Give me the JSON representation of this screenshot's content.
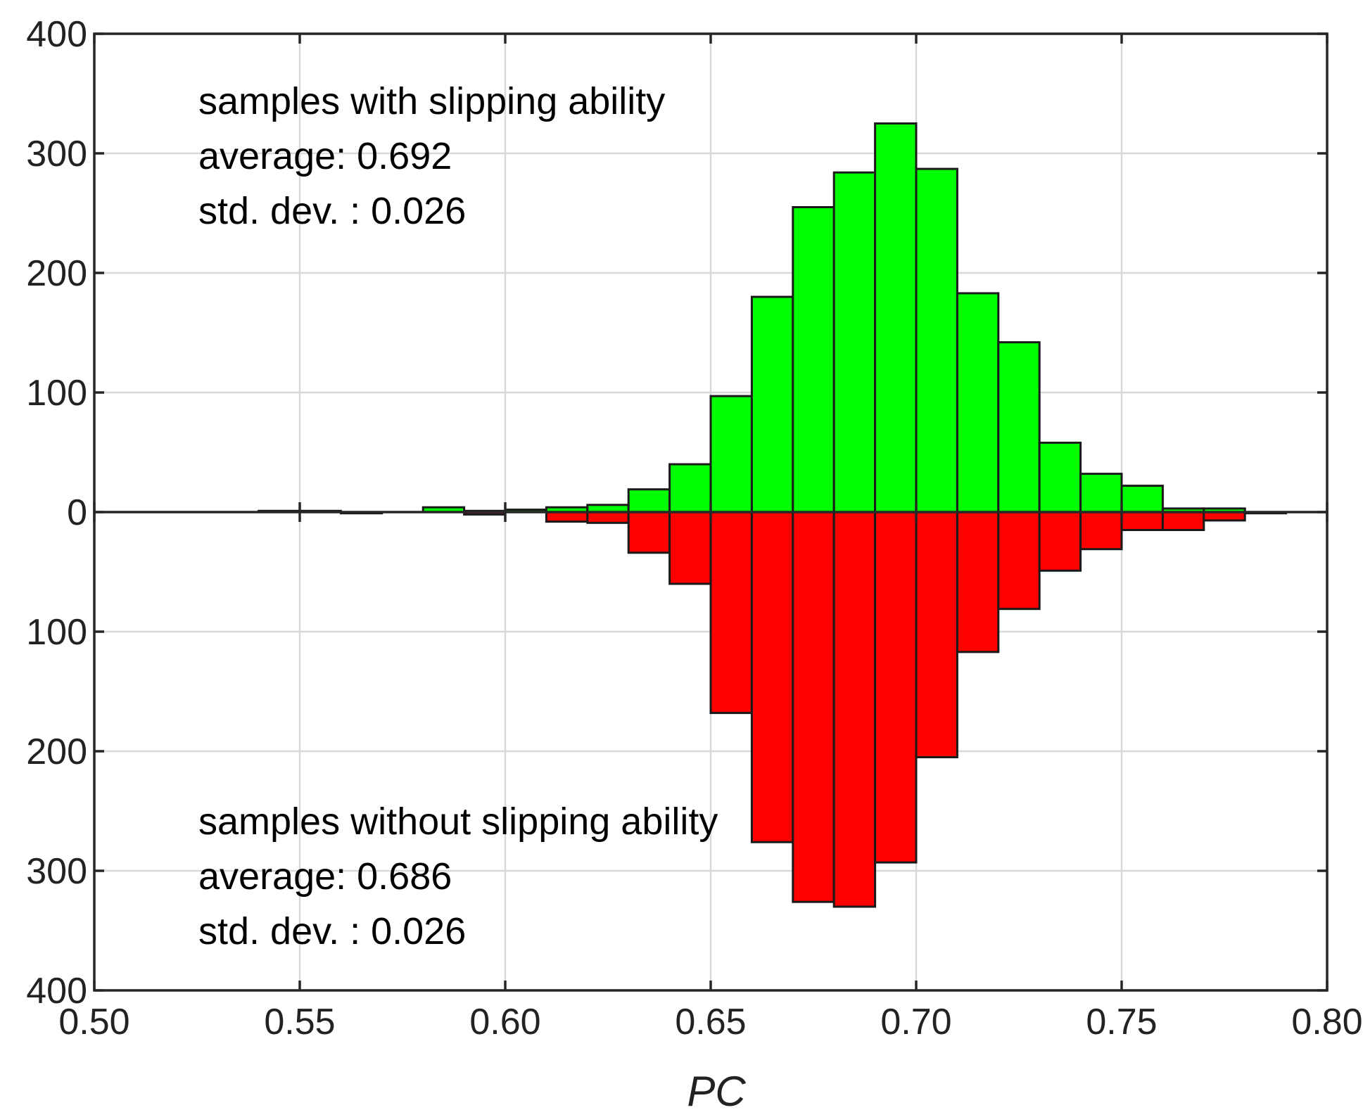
{
  "chart_data": {
    "type": "bar",
    "subtype": "mirrored-histogram",
    "xlabel": "PC",
    "xlim": [
      0.5,
      0.8
    ],
    "ylim": [
      -400,
      400
    ],
    "grid": true,
    "x_ticks": [
      "0.50",
      "0.55",
      "0.60",
      "0.65",
      "0.70",
      "0.75",
      "0.80"
    ],
    "y_ticks": [
      "400",
      "300",
      "200",
      "100",
      "0",
      "100",
      "200",
      "300",
      "400"
    ],
    "bin_width": 0.01,
    "bin_edges_start": [
      0.54,
      0.55,
      0.56,
      0.57,
      0.58,
      0.59,
      0.6,
      0.61,
      0.62,
      0.63,
      0.64,
      0.65,
      0.66,
      0.67,
      0.68,
      0.69,
      0.7,
      0.71,
      0.72,
      0.73,
      0.74,
      0.75,
      0.76,
      0.77,
      0.78
    ],
    "series": [
      {
        "name": "samples with slipping ability",
        "color": "#00ff00",
        "direction": "up",
        "values": [
          1,
          1,
          0,
          0,
          4,
          1,
          2,
          4,
          6,
          19,
          40,
          97,
          180,
          255,
          284,
          325,
          287,
          183,
          142,
          58,
          32,
          22,
          3,
          3,
          0
        ]
      },
      {
        "name": "samples without slipping ability",
        "color": "#ff0000",
        "direction": "down",
        "values": [
          0,
          0,
          1,
          0,
          0,
          2,
          0,
          8,
          9,
          34,
          60,
          168,
          276,
          326,
          330,
          293,
          205,
          117,
          81,
          49,
          31,
          15,
          15,
          7,
          1
        ]
      }
    ],
    "annotations": {
      "top": {
        "line1": "samples with slipping ability",
        "line2": "average: 0.692",
        "line3": "std. dev. : 0.026"
      },
      "bottom": {
        "line1": "samples without slipping ability",
        "line2": "average: 0.686",
        "line3": "std. dev. : 0.026"
      }
    }
  }
}
